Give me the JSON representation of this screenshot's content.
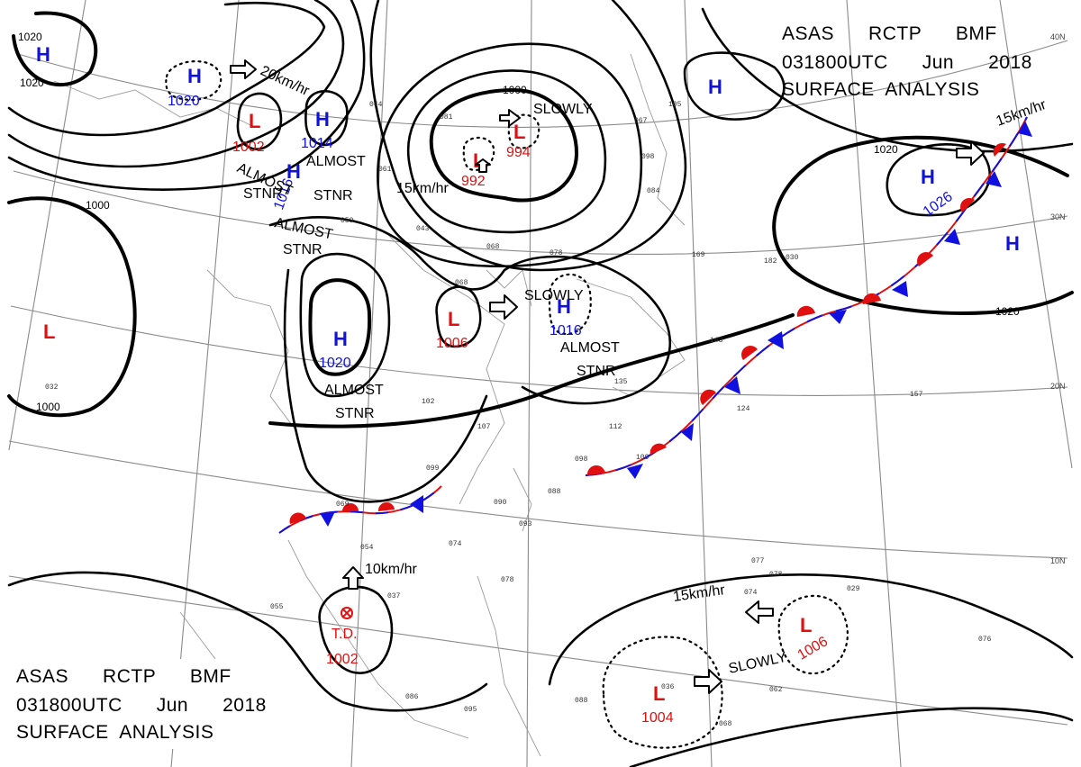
{
  "header": {
    "line1": "ASAS      RCTP      BMF",
    "line2": "031800UTC      Jun      2018",
    "line3": "SURFACE  ANALYSIS"
  },
  "lat_labels": [
    "40N",
    "30N",
    "20N",
    "10N"
  ],
  "isobar_labels": [
    "1020",
    "1020",
    "1000",
    "1000",
    "1000",
    "1020",
    "1020"
  ],
  "systems": [
    {
      "type": "H",
      "pressure": "1020"
    },
    {
      "type": "H",
      "pressure": ""
    },
    {
      "type": "L",
      "pressure": "1002"
    },
    {
      "type": "H",
      "pressure": "1014"
    },
    {
      "type": "H",
      "pressure": "1016"
    },
    {
      "type": "L",
      "pressure": "992"
    },
    {
      "type": "L",
      "pressure": "994"
    },
    {
      "type": "H",
      "pressure": ""
    },
    {
      "type": "H",
      "pressure": "1026"
    },
    {
      "type": "H",
      "pressure": ""
    },
    {
      "type": "L",
      "pressure": ""
    },
    {
      "type": "H",
      "pressure": "1020"
    },
    {
      "type": "L",
      "pressure": "1006"
    },
    {
      "type": "H",
      "pressure": "1016"
    },
    {
      "type": "L",
      "pressure": "1006"
    },
    {
      "type": "L",
      "pressure": "1004"
    }
  ],
  "tropical_depression": {
    "label": "T.D.",
    "pressure": "1002"
  },
  "motion_notes": [
    "20km/hr",
    "SLOWLY",
    "15km/hr",
    "15km/hr",
    "SLOWLY",
    "10km/hr",
    "15km/hr",
    "SLOWLY"
  ],
  "stationary_notes": [
    "ALMOST",
    "STNR",
    "ALMOST",
    "STNR",
    "ALMOST",
    "STNR",
    "ALMOST",
    "STNR",
    "ALMOST",
    "STNR",
    "ALMOST",
    "STNR"
  ],
  "station_obs": [
    "044",
    "061",
    "059",
    "043",
    "068",
    "078",
    "068",
    "102",
    "107",
    "099",
    "069",
    "054",
    "074",
    "088",
    "093",
    "090",
    "078",
    "055",
    "037",
    "086",
    "095",
    "088",
    "036",
    "068",
    "078",
    "077",
    "062",
    "074",
    "076",
    "029",
    "124",
    "157",
    "109",
    "098",
    "112",
    "135",
    "143",
    "182",
    "169",
    "030",
    "084",
    "098",
    "067",
    "105",
    "081",
    "032"
  ],
  "colors": {
    "high": "#1010e0",
    "low": "#e01010",
    "isobar": "#000000",
    "warm_front": "#e01010",
    "cold_front": "#1010e0",
    "grid": "#8a8a8a"
  }
}
